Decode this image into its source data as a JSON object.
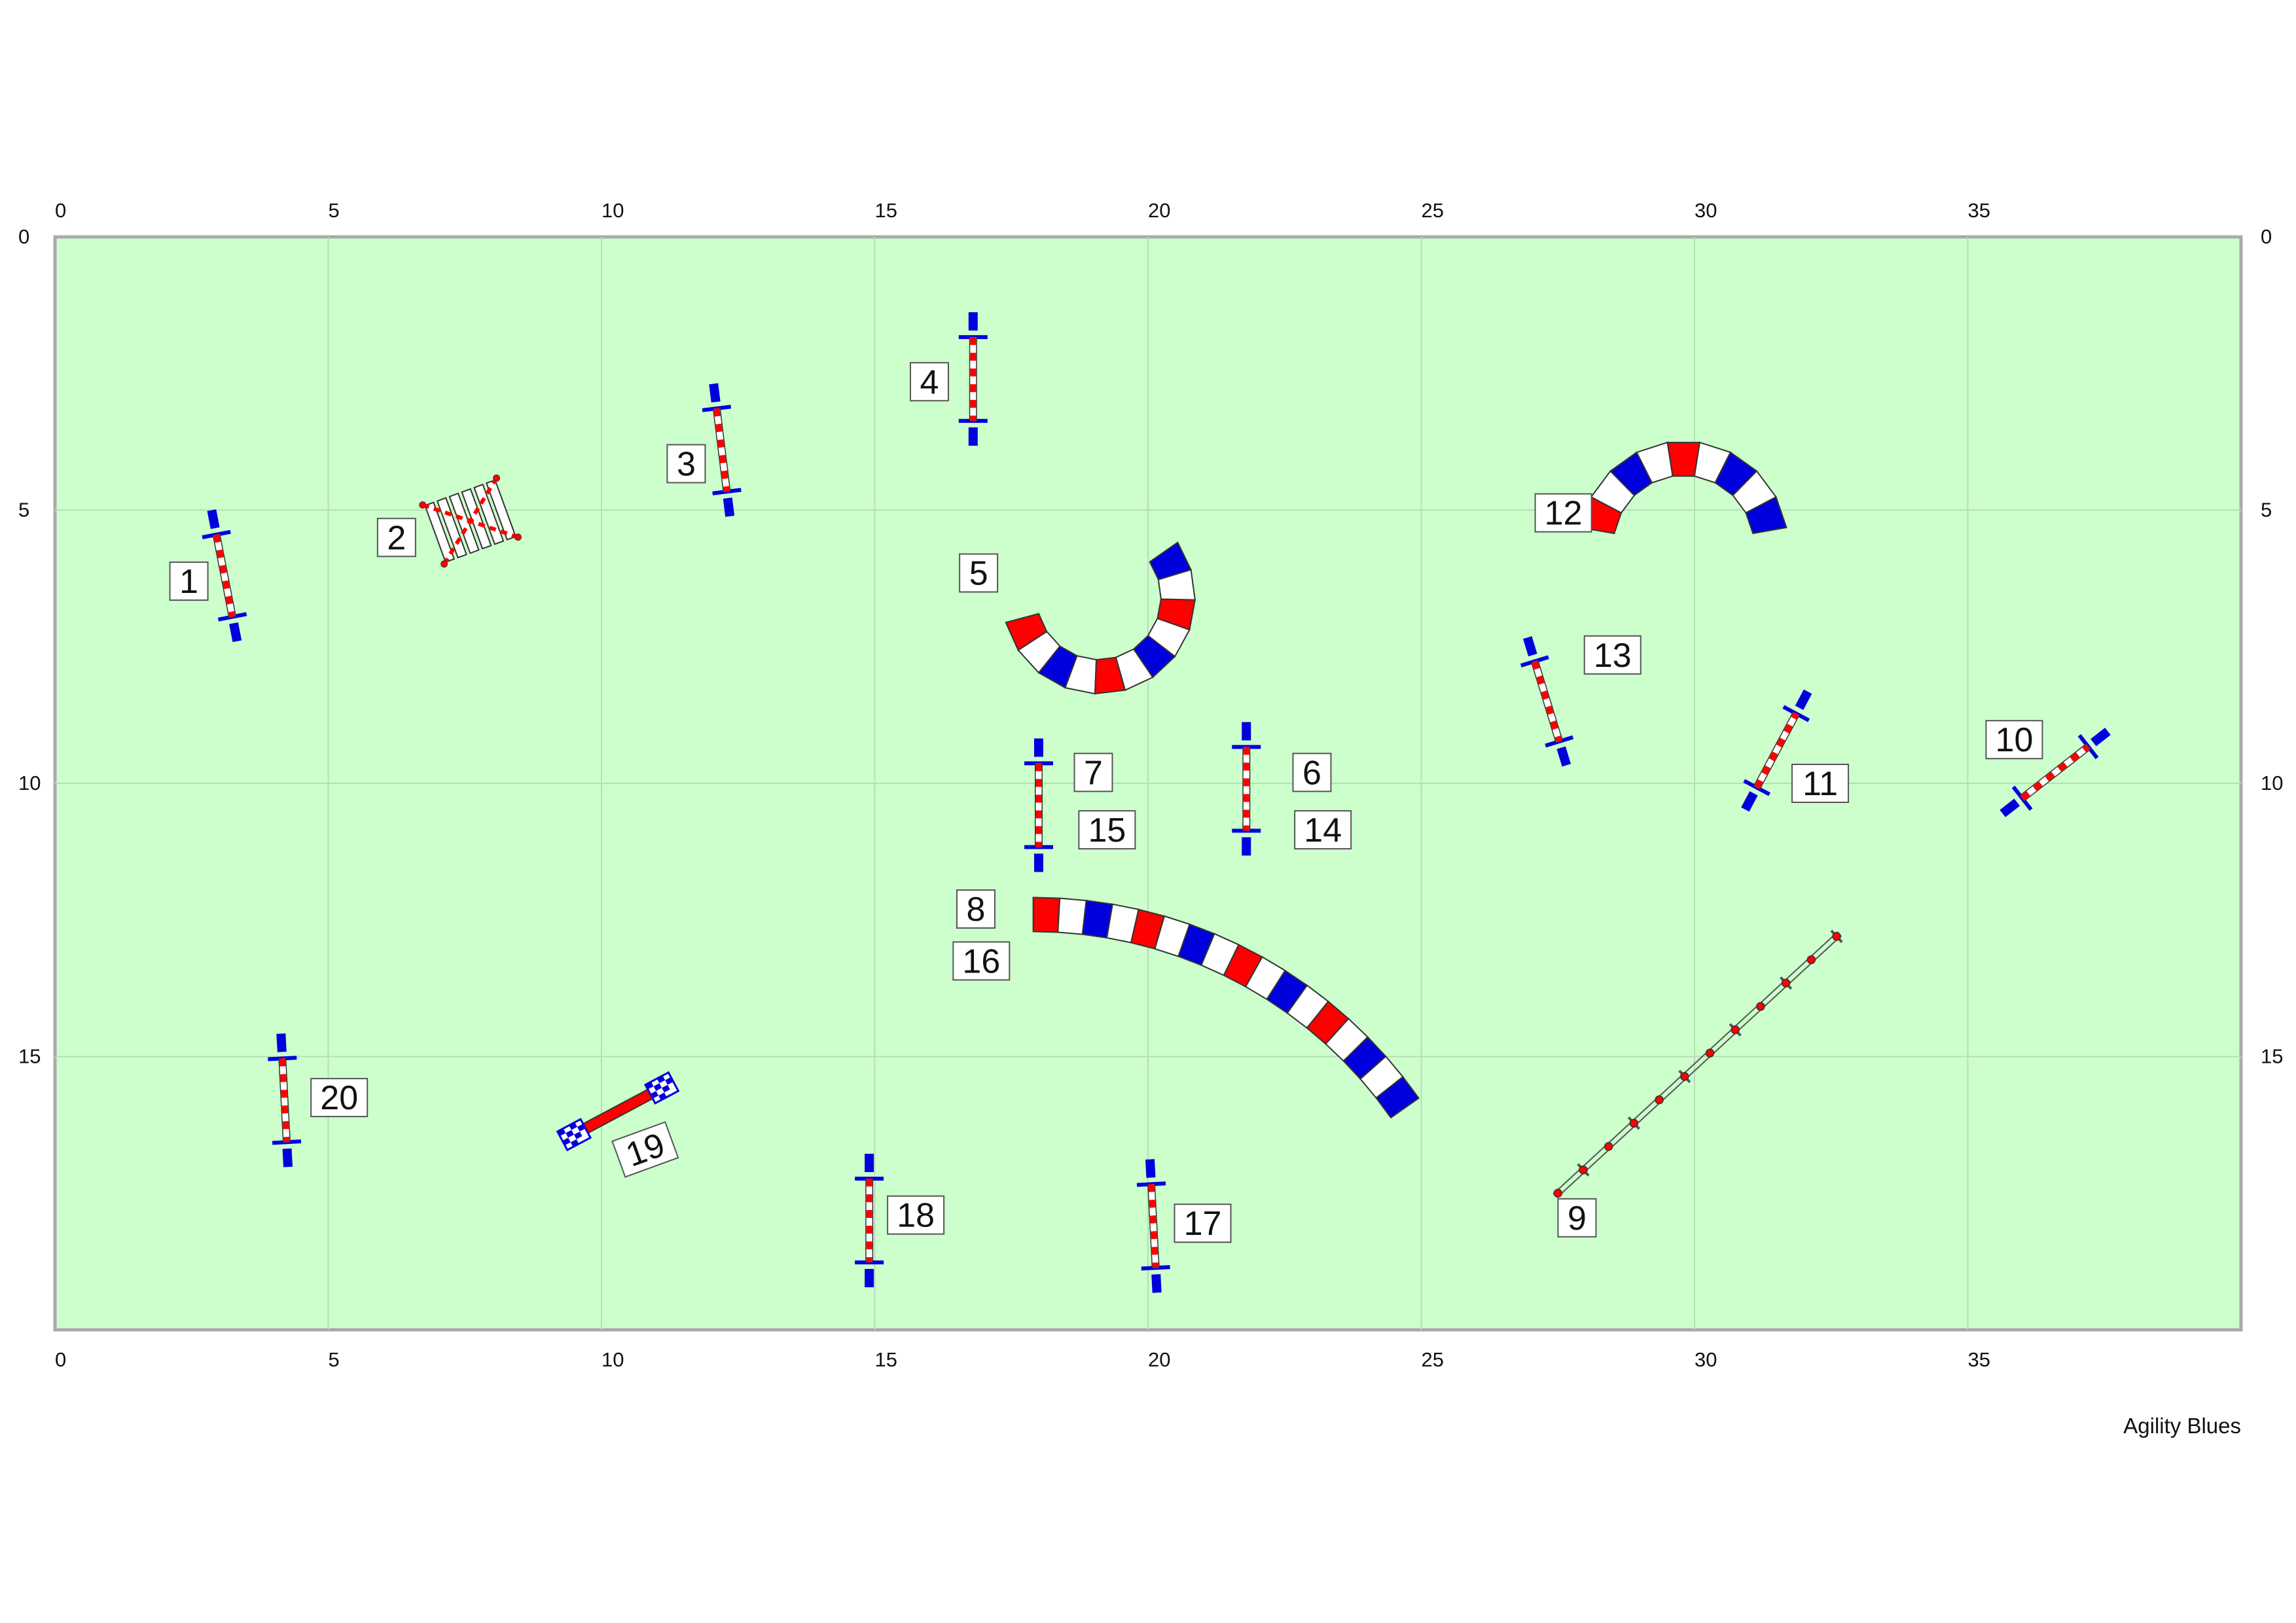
{
  "course": {
    "field_width": 40,
    "field_height": 20,
    "x_ticks": [
      "0",
      "5",
      "10",
      "15",
      "20",
      "25",
      "30",
      "35"
    ],
    "y_ticks": [
      "0",
      "5",
      "10",
      "15"
    ],
    "field_color": "#ccffcc",
    "grid_color": "#b8dcb8",
    "border_color": "#aaaaaa",
    "credit": "Agility Blues"
  },
  "colors": {
    "red": "#ff0000",
    "blue": "#0000dd",
    "white": "#ffffff"
  },
  "jumps": [
    {
      "id": "jump-1",
      "x": 3.1,
      "y": 6.2,
      "angle": 79
    },
    {
      "id": "jump-3",
      "x": 12.2,
      "y": 3.9,
      "angle": 83
    },
    {
      "id": "jump-4",
      "x": 16.8,
      "y": 2.6,
      "angle": 90
    },
    {
      "id": "jump-7-15",
      "x": 18.0,
      "y": 10.4,
      "angle": 90
    },
    {
      "id": "jump-6-14",
      "x": 21.8,
      "y": 10.1,
      "angle": 90
    },
    {
      "id": "jump-13",
      "x": 27.3,
      "y": 8.5,
      "angle": 73
    },
    {
      "id": "jump-11",
      "x": 31.5,
      "y": 9.4,
      "angle": -62
    },
    {
      "id": "jump-10",
      "x": 36.6,
      "y": 9.8,
      "angle": -38
    },
    {
      "id": "jump-20",
      "x": 4.2,
      "y": 15.8,
      "angle": 87
    },
    {
      "id": "jump-18",
      "x": 14.9,
      "y": 18.0,
      "angle": 90
    },
    {
      "id": "jump-17",
      "x": 20.1,
      "y": 18.1,
      "angle": 87
    }
  ],
  "tunnels": [
    {
      "id": "tunnel-5",
      "cx": 19.1,
      "cy": 6.6,
      "r": 1.45,
      "a0": 165,
      "a1": 5,
      "first": "red"
    },
    {
      "id": "tunnel-12",
      "cx": 29.8,
      "cy": 5.65,
      "r": 1.6,
      "a0": 190,
      "a1": 350,
      "first": "red"
    },
    {
      "id": "tunnel-8-16",
      "cx": 17.9,
      "cy": 20.7,
      "r": 8.3,
      "a0": 270,
      "a1": 325,
      "first": "red"
    }
  ],
  "spread_jump": {
    "id": "spread-jump-2",
    "x": 7.6,
    "y": 5.2,
    "angle": -20,
    "boards": 6
  },
  "table": {
    "id": "tire-19",
    "x": 10.3,
    "y": 16.0,
    "angle": -28,
    "length": 2.3
  },
  "weave": {
    "id": "weave-poles-9",
    "x1": 27.5,
    "y1": 17.5,
    "x2": 32.6,
    "y2": 12.8,
    "poles": 12
  },
  "labels": [
    {
      "text": "1",
      "x": 2.45,
      "y": 6.3
    },
    {
      "text": "2",
      "x": 6.25,
      "y": 5.5
    },
    {
      "text": "3",
      "x": 11.55,
      "y": 4.15
    },
    {
      "text": "4",
      "x": 16.0,
      "y": 2.65
    },
    {
      "text": "5",
      "x": 16.9,
      "y": 6.15
    },
    {
      "text": "6",
      "x": 23.0,
      "y": 9.8
    },
    {
      "text": "7",
      "x": 19.0,
      "y": 9.8
    },
    {
      "text": "8",
      "x": 16.85,
      "y": 12.3
    },
    {
      "text": "9",
      "x": 27.85,
      "y": 17.95
    },
    {
      "text": "10",
      "x": 35.85,
      "y": 9.2
    },
    {
      "text": "11",
      "x": 32.3,
      "y": 10.0
    },
    {
      "text": "12",
      "x": 27.6,
      "y": 5.05
    },
    {
      "text": "13",
      "x": 28.5,
      "y": 7.65
    },
    {
      "text": "14",
      "x": 23.2,
      "y": 10.85
    },
    {
      "text": "15",
      "x": 19.25,
      "y": 10.85
    },
    {
      "text": "16",
      "x": 16.95,
      "y": 13.25
    },
    {
      "text": "17",
      "x": 21.0,
      "y": 18.05
    },
    {
      "text": "18",
      "x": 15.75,
      "y": 17.9
    },
    {
      "text": "19",
      "x": 10.8,
      "y": 16.7,
      "angle": -20
    },
    {
      "text": "20",
      "x": 5.2,
      "y": 15.75
    }
  ]
}
